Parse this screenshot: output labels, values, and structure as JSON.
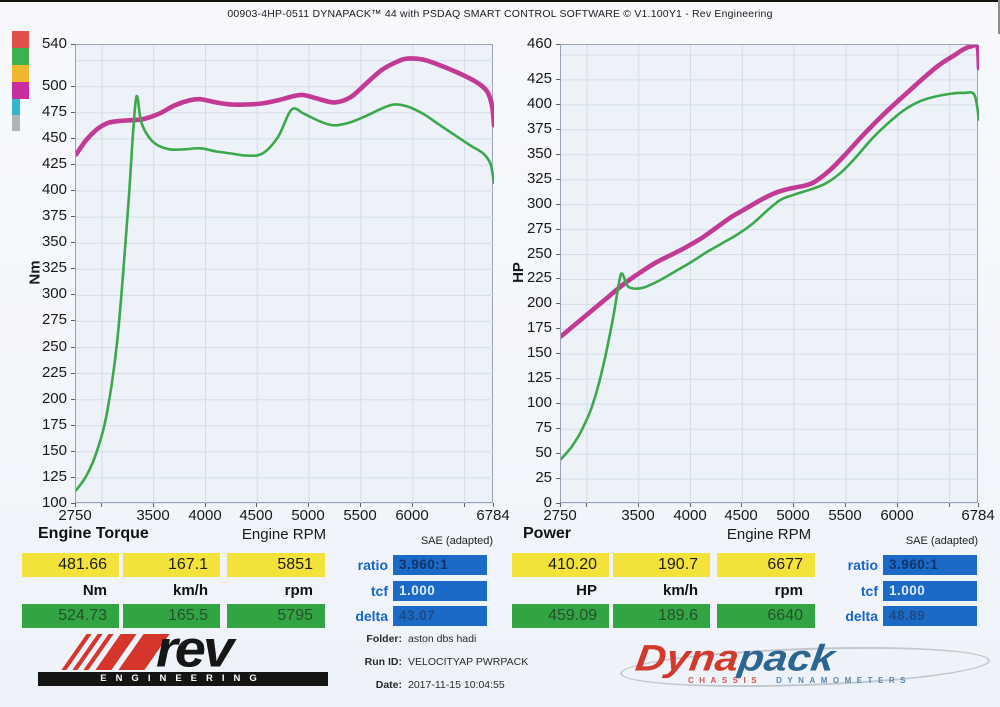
{
  "header": {
    "title": "00903-4HP-0511 DYNAPACK™ 44 with PSDAQ SMART CONTROL SOFTWARE © V1.100Y1 - Rev Engineering"
  },
  "legend": {
    "swatches": [
      {
        "name": "red-swatch",
        "color": "#e0514a",
        "w": 17,
        "h": 17
      },
      {
        "name": "green-swatch",
        "color": "#3cb14d",
        "w": 17,
        "h": 17
      },
      {
        "name": "amber-swatch",
        "color": "#edb82e",
        "w": 17,
        "h": 17
      },
      {
        "name": "magenta-swatch",
        "color": "#c92da1",
        "w": 17,
        "h": 17
      },
      {
        "name": "cyan-swatch",
        "color": "#35b7cb",
        "w": 8,
        "h": 16
      },
      {
        "name": "gray-swatch",
        "color": "#b3b3b6",
        "w": 8,
        "h": 16
      }
    ]
  },
  "chart_data": [
    {
      "type": "line",
      "title": "Engine Torque",
      "xlabel": "Engine RPM",
      "ylabel": "Nm",
      "note": "SAE (adapted)",
      "xlim": [
        2750,
        6784
      ],
      "ylim": [
        100,
        540
      ],
      "x_ticks": [
        2750,
        3500,
        4000,
        4500,
        5000,
        5500,
        6000,
        6784
      ],
      "x_grid": [
        3000,
        3500,
        4000,
        4500,
        5000,
        5500,
        6000,
        6500
      ],
      "y_ticks": [
        540,
        500,
        475,
        450,
        425,
        400,
        375,
        350,
        325,
        300,
        275,
        250,
        225,
        200,
        175,
        150,
        125,
        100
      ],
      "y_grid_step": 25,
      "grid": true,
      "legend_position": "none",
      "series": [
        {
          "name": "torque-run-magenta",
          "color": "#c23a96",
          "width": 4.6,
          "points": [
            [
              2750,
              435
            ],
            [
              2850,
              449
            ],
            [
              2950,
              459
            ],
            [
              3050,
              465
            ],
            [
              3150,
              467
            ],
            [
              3300,
              468
            ],
            [
              3400,
              469
            ],
            [
              3550,
              474
            ],
            [
              3700,
              482
            ],
            [
              3850,
              487
            ],
            [
              3950,
              488
            ],
            [
              4100,
              485
            ],
            [
              4250,
              483
            ],
            [
              4400,
              483
            ],
            [
              4550,
              484
            ],
            [
              4700,
              487
            ],
            [
              4850,
              491
            ],
            [
              4950,
              492
            ],
            [
              5100,
              488
            ],
            [
              5250,
              485
            ],
            [
              5400,
              490
            ],
            [
              5550,
              503
            ],
            [
              5700,
              516
            ],
            [
              5850,
              524
            ],
            [
              5950,
              527
            ],
            [
              6100,
              526
            ],
            [
              6250,
              521
            ],
            [
              6400,
              515
            ],
            [
              6550,
              508
            ],
            [
              6650,
              502
            ],
            [
              6720,
              495
            ],
            [
              6765,
              482
            ],
            [
              6784,
              463
            ]
          ]
        },
        {
          "name": "torque-run-green",
          "color": "#3aa84b",
          "width": 2.6,
          "points": [
            [
              2750,
              113
            ],
            [
              2850,
              127
            ],
            [
              2950,
              150
            ],
            [
              3050,
              188
            ],
            [
              3150,
              258
            ],
            [
              3250,
              380
            ],
            [
              3300,
              455
            ],
            [
              3335,
              491
            ],
            [
              3375,
              468
            ],
            [
              3430,
              455
            ],
            [
              3520,
              445
            ],
            [
              3650,
              440
            ],
            [
              3800,
              440
            ],
            [
              3950,
              441
            ],
            [
              4100,
              438
            ],
            [
              4250,
              436
            ],
            [
              4400,
              434
            ],
            [
              4550,
              436
            ],
            [
              4700,
              452
            ],
            [
              4830,
              478
            ],
            [
              4950,
              474
            ],
            [
              5100,
              467
            ],
            [
              5240,
              463
            ],
            [
              5400,
              466
            ],
            [
              5550,
              472
            ],
            [
              5700,
              479
            ],
            [
              5820,
              483
            ],
            [
              5950,
              481
            ],
            [
              6100,
              474
            ],
            [
              6250,
              464
            ],
            [
              6400,
              454
            ],
            [
              6550,
              444
            ],
            [
              6680,
              436
            ],
            [
              6750,
              426
            ],
            [
              6784,
              408
            ]
          ]
        }
      ]
    },
    {
      "type": "line",
      "title": "Power",
      "xlabel": "Engine RPM",
      "ylabel": "HP",
      "note": "SAE (adapted)",
      "xlim": [
        2750,
        6784
      ],
      "ylim": [
        0,
        460
      ],
      "x_ticks": [
        2750,
        3500,
        4000,
        4500,
        5000,
        5500,
        6000,
        6784
      ],
      "x_grid": [
        3000,
        3500,
        4000,
        4500,
        5000,
        5500,
        6000,
        6500
      ],
      "y_ticks": [
        460,
        425,
        400,
        375,
        350,
        325,
        300,
        275,
        250,
        225,
        200,
        175,
        150,
        125,
        100,
        75,
        50,
        25,
        0
      ],
      "y_grid_step": 25,
      "grid": true,
      "legend_position": "none",
      "series": [
        {
          "name": "power-run-magenta",
          "color": "#c23a96",
          "width": 4.6,
          "points": [
            [
              2750,
              168
            ],
            [
              2900,
              181
            ],
            [
              3050,
              194
            ],
            [
              3200,
              207
            ],
            [
              3350,
              220
            ],
            [
              3500,
              231
            ],
            [
              3650,
              241
            ],
            [
              3800,
              249
            ],
            [
              3950,
              257
            ],
            [
              4100,
              266
            ],
            [
              4250,
              277
            ],
            [
              4400,
              288
            ],
            [
              4550,
              297
            ],
            [
              4700,
              306
            ],
            [
              4850,
              313
            ],
            [
              5000,
              317
            ],
            [
              5100,
              319
            ],
            [
              5200,
              323
            ],
            [
              5350,
              335
            ],
            [
              5500,
              351
            ],
            [
              5650,
              368
            ],
            [
              5800,
              384
            ],
            [
              5950,
              399
            ],
            [
              6100,
              413
            ],
            [
              6250,
              427
            ],
            [
              6400,
              440
            ],
            [
              6550,
              450
            ],
            [
              6640,
              456
            ],
            [
              6720,
              459
            ],
            [
              6770,
              459
            ],
            [
              6784,
              437
            ]
          ]
        },
        {
          "name": "power-run-green",
          "color": "#3aa84b",
          "width": 2.6,
          "points": [
            [
              2750,
              45
            ],
            [
              2850,
              57
            ],
            [
              2950,
              74
            ],
            [
              3050,
              98
            ],
            [
              3150,
              135
            ],
            [
              3250,
              185
            ],
            [
              3310,
              222
            ],
            [
              3340,
              231
            ],
            [
              3390,
              219
            ],
            [
              3450,
              216
            ],
            [
              3550,
              217
            ],
            [
              3700,
              224
            ],
            [
              3850,
              233
            ],
            [
              4000,
              242
            ],
            [
              4150,
              252
            ],
            [
              4300,
              261
            ],
            [
              4450,
              270
            ],
            [
              4600,
              281
            ],
            [
              4750,
              295
            ],
            [
              4870,
              305
            ],
            [
              5000,
              310
            ],
            [
              5150,
              315
            ],
            [
              5300,
              321
            ],
            [
              5450,
              332
            ],
            [
              5600,
              348
            ],
            [
              5750,
              366
            ],
            [
              5900,
              381
            ],
            [
              6050,
              394
            ],
            [
              6200,
              403
            ],
            [
              6350,
              408
            ],
            [
              6500,
              411
            ],
            [
              6640,
              412
            ],
            [
              6740,
              410
            ],
            [
              6784,
              385
            ]
          ]
        }
      ]
    }
  ],
  "tables": [
    {
      "rows": [
        [
          "481.66",
          "167.1",
          "5851"
        ],
        [
          "Nm",
          "km/h",
          "rpm"
        ],
        [
          "524.73",
          "165.5",
          "5795"
        ]
      ],
      "side": [
        {
          "label": "ratio",
          "value": "3.960:1"
        },
        {
          "label": "tcf",
          "value": "1.000"
        },
        {
          "label": "delta",
          "value": "43.07"
        }
      ]
    },
    {
      "rows": [
        [
          "410.20",
          "190.7",
          "6677"
        ],
        [
          "HP",
          "km/h",
          "rpm"
        ],
        [
          "459.09",
          "189.6",
          "6640"
        ]
      ],
      "side": [
        {
          "label": "ratio",
          "value": "3.960:1"
        },
        {
          "label": "tcf",
          "value": "1.000"
        },
        {
          "label": "delta",
          "value": "48.89"
        }
      ]
    }
  ],
  "footer": {
    "folder_label": "Folder:",
    "folder_value": "aston dbs hadi",
    "run_label": "Run ID:",
    "run_value": "VELOCITYAP PWRPACK",
    "date_label": "Date:",
    "date_value": "2017-11-15 10:04:55"
  },
  "logos": {
    "rev_word": "rev",
    "rev_sub": "ENGINEERING",
    "dynapack_part1": "Dyna",
    "dynapack_part2": "pack",
    "dynapack_sub1": "CHASSIS",
    "dynapack_sub2": "DYNAMOMETERS"
  },
  "colors": {
    "magenta_curve": "#c23a96",
    "green_curve": "#3aa84b",
    "yellow_box": "#f2e239",
    "green_box": "#33a443",
    "blue_box": "#1b6bc6",
    "blue_label": "#1565cd",
    "plot_bg": "#edf1f8",
    "grid_line": "#d6dce9"
  }
}
